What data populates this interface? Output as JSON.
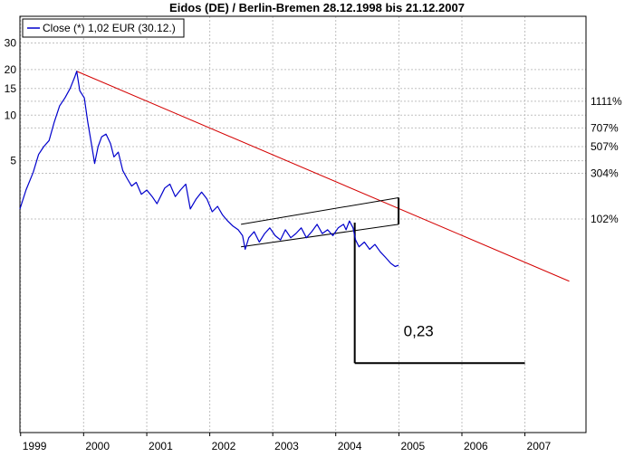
{
  "chart_data": {
    "type": "line",
    "title": "Eidos (DE) / Berlin-Bremen 28.12.1998 bis 21.12.2007",
    "legend": {
      "label": "Close (*) 1,02 EUR (30.12.)",
      "placement": "top-left"
    },
    "x_range": [
      "1998-12-28",
      "2007-12-21"
    ],
    "x_ticks": [
      "1999",
      "2000",
      "2001",
      "2002",
      "2003",
      "2004",
      "2005",
      "2006",
      "2007"
    ],
    "y_scale": "log",
    "y_range": [
      0.08,
      45
    ],
    "y_ticks_left": [
      5,
      10,
      15,
      20,
      30
    ],
    "y_ticks_right": [
      {
        "label": "1111%",
        "value": 12.35
      },
      {
        "label": "707%",
        "value": 8.24
      },
      {
        "label": "507%",
        "value": 6.2
      },
      {
        "label": "304%",
        "value": 4.13
      },
      {
        "label": "102%",
        "value": 2.06
      }
    ],
    "grid": true,
    "colors": {
      "series": "#0000cc",
      "trendline": "#d40000",
      "annotation": "#000000",
      "grid": "#c0c0c0"
    },
    "series": [
      {
        "name": "Close (*) 1,02 EUR (30.12.)",
        "points": [
          [
            "1998-12-28",
            2.4
          ],
          [
            "1999-02-01",
            3.2
          ],
          [
            "1999-03-15",
            4.2
          ],
          [
            "1999-04-15",
            5.5
          ],
          [
            "1999-05-15",
            6.2
          ],
          [
            "1999-06-15",
            6.8
          ],
          [
            "1999-07-15",
            9.0
          ],
          [
            "1999-08-15",
            11.5
          ],
          [
            "1999-09-15",
            13.0
          ],
          [
            "1999-10-15",
            15.0
          ],
          [
            "1999-11-10",
            17.8
          ],
          [
            "1999-11-22",
            19.5
          ],
          [
            "1999-12-10",
            14.5
          ],
          [
            "2000-01-05",
            13.0
          ],
          [
            "2000-01-25",
            9.0
          ],
          [
            "2000-02-15",
            6.5
          ],
          [
            "2000-03-05",
            4.8
          ],
          [
            "2000-03-25",
            6.2
          ],
          [
            "2000-04-15",
            7.2
          ],
          [
            "2000-05-10",
            7.5
          ],
          [
            "2000-06-05",
            6.5
          ],
          [
            "2000-06-25",
            5.3
          ],
          [
            "2000-07-20",
            5.7
          ],
          [
            "2000-08-15",
            4.3
          ],
          [
            "2000-09-10",
            3.8
          ],
          [
            "2000-10-05",
            3.4
          ],
          [
            "2000-11-01",
            3.6
          ],
          [
            "2000-12-01",
            3.0
          ],
          [
            "2001-01-01",
            3.2
          ],
          [
            "2001-02-01",
            2.9
          ],
          [
            "2001-03-01",
            2.6
          ],
          [
            "2001-04-15",
            3.3
          ],
          [
            "2001-05-15",
            3.5
          ],
          [
            "2001-06-15",
            2.9
          ],
          [
            "2001-07-15",
            3.2
          ],
          [
            "2001-08-15",
            3.5
          ],
          [
            "2001-09-10",
            2.4
          ],
          [
            "2001-10-15",
            2.8
          ],
          [
            "2001-11-15",
            3.1
          ],
          [
            "2001-12-15",
            2.8
          ],
          [
            "2002-01-15",
            2.3
          ],
          [
            "2002-02-15",
            2.5
          ],
          [
            "2002-03-15",
            2.2
          ],
          [
            "2002-04-15",
            2.0
          ],
          [
            "2002-05-15",
            1.85
          ],
          [
            "2002-06-15",
            1.75
          ],
          [
            "2002-07-10",
            1.6
          ],
          [
            "2002-07-25",
            1.3
          ],
          [
            "2002-08-15",
            1.55
          ],
          [
            "2002-09-15",
            1.7
          ],
          [
            "2002-10-15",
            1.45
          ],
          [
            "2002-11-15",
            1.65
          ],
          [
            "2002-12-15",
            1.8
          ],
          [
            "2003-01-15",
            1.6
          ],
          [
            "2003-02-15",
            1.5
          ],
          [
            "2003-03-15",
            1.75
          ],
          [
            "2003-04-15",
            1.55
          ],
          [
            "2003-05-15",
            1.65
          ],
          [
            "2003-06-15",
            1.8
          ],
          [
            "2003-07-15",
            1.55
          ],
          [
            "2003-08-15",
            1.7
          ],
          [
            "2003-09-15",
            1.9
          ],
          [
            "2003-10-15",
            1.65
          ],
          [
            "2003-11-15",
            1.75
          ],
          [
            "2003-12-15",
            1.6
          ],
          [
            "2004-01-15",
            1.8
          ],
          [
            "2004-02-15",
            1.9
          ],
          [
            "2004-03-01",
            1.75
          ],
          [
            "2004-03-20",
            2.0
          ],
          [
            "2004-04-10",
            1.8
          ],
          [
            "2004-04-25",
            1.5
          ],
          [
            "2004-05-15",
            1.35
          ],
          [
            "2004-06-15",
            1.45
          ],
          [
            "2004-07-15",
            1.3
          ],
          [
            "2004-08-15",
            1.4
          ],
          [
            "2004-09-15",
            1.25
          ],
          [
            "2004-10-15",
            1.15
          ],
          [
            "2004-11-15",
            1.05
          ],
          [
            "2004-12-10",
            1.0
          ],
          [
            "2004-12-30",
            1.02
          ]
        ]
      }
    ],
    "annotations": {
      "trendline": {
        "from": [
          "1999-11-22",
          19.5
        ],
        "to": [
          "2007-09-15",
          0.8
        ]
      },
      "channel": {
        "lower": {
          "from": [
            "2002-07-01",
            1.35
          ],
          "to": [
            "2004-12-30",
            1.9
          ]
        },
        "upper": {
          "from": [
            "2002-07-01",
            1.9
          ],
          "to": [
            "2004-12-30",
            2.85
          ]
        }
      },
      "projection": {
        "drop_from": [
          "2004-04-20",
          1.95
        ],
        "floor_value": 0.23,
        "floor_to": [
          "2007-01-01",
          0.23
        ],
        "label": "0,23"
      }
    }
  }
}
